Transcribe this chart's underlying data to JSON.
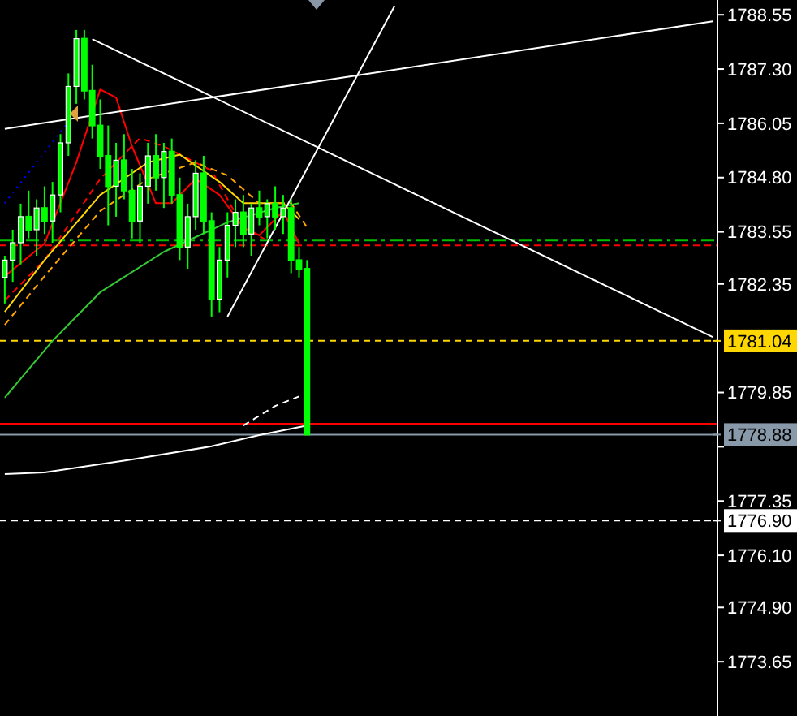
{
  "chart_data": {
    "type": "candlestick",
    "tick_labels": "y",
    "grid": false,
    "categories": [
      null,
      null,
      null,
      null,
      null,
      null,
      null,
      null,
      null,
      null,
      null,
      null,
      null,
      null,
      null,
      null,
      null,
      null,
      null,
      null,
      null,
      null,
      null,
      null,
      null,
      null,
      null,
      null,
      null,
      null,
      null,
      null,
      null,
      null,
      null,
      null,
      null,
      null,
      null,
      null,
      null,
      null,
      null,
      null,
      null,
      null,
      null,
      null,
      null,
      null,
      null,
      null,
      null,
      null,
      null,
      null,
      null,
      null,
      null,
      null,
      null,
      null,
      null,
      null,
      null,
      null,
      null,
      null,
      null,
      null,
      null,
      null,
      null,
      null,
      null,
      null,
      null,
      null,
      null,
      null,
      null,
      null,
      null,
      null,
      null,
      null,
      null,
      null,
      null,
      null
    ],
    "ohlc": [
      [
        1782.5,
        1783.0,
        1781.9,
        1782.9
      ],
      [
        1782.9,
        1783.6,
        1782.4,
        1783.3
      ],
      [
        1783.3,
        1784.2,
        1782.8,
        1783.9
      ],
      [
        1783.9,
        1784.5,
        1783.4,
        1783.6
      ],
      [
        1783.6,
        1784.3,
        1783.0,
        1784.1
      ],
      [
        1784.1,
        1784.6,
        1783.5,
        1783.8
      ],
      [
        1783.8,
        1784.7,
        1783.3,
        1784.4
      ],
      [
        1784.4,
        1785.8,
        1784.0,
        1785.6
      ],
      [
        1785.6,
        1787.2,
        1785.3,
        1786.9
      ],
      [
        1786.9,
        1788.2,
        1786.5,
        1788.0
      ],
      [
        1788.0,
        1788.2,
        1786.6,
        1786.8
      ],
      [
        1786.8,
        1787.4,
        1785.7,
        1786.0
      ],
      [
        1786.0,
        1786.6,
        1785.0,
        1785.3
      ],
      [
        1785.3,
        1786.0,
        1783.7,
        1784.6
      ],
      [
        1784.6,
        1785.6,
        1783.9,
        1785.2
      ],
      [
        1785.2,
        1785.8,
        1784.3,
        1784.5
      ],
      [
        1784.5,
        1785.0,
        1783.4,
        1783.8
      ],
      [
        1783.8,
        1784.9,
        1783.3,
        1784.6
      ],
      [
        1784.6,
        1785.6,
        1784.2,
        1785.3
      ],
      [
        1785.3,
        1785.8,
        1784.5,
        1784.8
      ],
      [
        1784.8,
        1785.6,
        1784.1,
        1785.4
      ],
      [
        1785.4,
        1785.7,
        1784.2,
        1784.4
      ],
      [
        1784.4,
        1784.8,
        1782.9,
        1783.2
      ],
      [
        1783.2,
        1784.2,
        1782.7,
        1783.9
      ],
      [
        1783.9,
        1785.2,
        1783.6,
        1784.9
      ],
      [
        1784.9,
        1785.3,
        1783.5,
        1783.8
      ],
      [
        1783.8,
        1784.0,
        1781.6,
        1782.0
      ],
      [
        1782.0,
        1783.2,
        1781.7,
        1782.9
      ],
      [
        1782.9,
        1784.0,
        1782.5,
        1783.7
      ],
      [
        1783.7,
        1784.3,
        1783.2,
        1784.0
      ],
      [
        1784.0,
        1784.4,
        1783.2,
        1783.5
      ],
      [
        1783.5,
        1784.2,
        1783.0,
        1784.1
      ],
      [
        1784.1,
        1784.5,
        1783.7,
        1783.9
      ],
      [
        1783.9,
        1784.3,
        1783.4,
        1784.2
      ],
      [
        1784.2,
        1784.6,
        1783.6,
        1783.9
      ],
      [
        1783.9,
        1784.4,
        1783.5,
        1784.1
      ],
      [
        1784.1,
        1784.3,
        1782.6,
        1782.9
      ],
      [
        1782.9,
        1783.2,
        1782.5,
        1782.7
      ],
      [
        1782.7,
        1782.9,
        1778.88,
        1778.88
      ],
      null,
      null,
      null,
      null,
      null,
      null,
      null,
      null,
      null,
      null,
      null,
      null,
      null,
      null,
      null,
      null,
      null,
      null,
      null,
      null,
      null,
      null,
      null,
      null,
      null,
      null,
      null,
      null,
      null,
      null,
      null,
      null,
      null,
      null,
      null,
      null,
      null,
      null,
      null,
      null,
      null,
      null,
      null,
      null,
      null,
      null,
      null,
      null,
      null,
      null,
      null
    ],
    "color": "#00ff00",
    "series": [
      {
        "type": "line",
        "color": "#ff0000",
        "line_style": "solid",
        "values": [
          1782.53,
          null,
          null,
          null,
          null,
          1783.28,
          null,
          null,
          null,
          1785.15,
          null,
          null,
          1786.83,
          null,
          1786.64,
          null,
          1785.52,
          null,
          null,
          1784.21,
          null,
          1784.21,
          null,
          null,
          1784.77,
          null,
          null,
          1784.4,
          null,
          null,
          1783.65,
          null,
          1783.47,
          null,
          null,
          1784.03,
          null,
          1783.28,
          null,
          null,
          null,
          null,
          null,
          null,
          null,
          null,
          null,
          null,
          null,
          null,
          null,
          null,
          null,
          null,
          null,
          null,
          null,
          null,
          null,
          null,
          null,
          null,
          null,
          null,
          null,
          null,
          null,
          null,
          null,
          null,
          null,
          null,
          null,
          null,
          null,
          null,
          null,
          null,
          null,
          null,
          null,
          null,
          null,
          null,
          null,
          null,
          null,
          null,
          null,
          null
        ]
      },
      {
        "type": "line",
        "color": "#ff0000",
        "line_style": "dashed",
        "values": [
          1781.97,
          null,
          null,
          null,
          null,
          1782.9,
          null,
          null,
          null,
          null,
          null,
          null,
          1784.77,
          null,
          null,
          null,
          null,
          1785.71,
          null,
          null,
          1785.52,
          null,
          null,
          null,
          null,
          null,
          1784.96,
          null,
          null,
          null,
          1783.65,
          null,
          null,
          1783.35,
          null,
          null,
          null,
          null,
          null,
          null,
          null,
          null,
          null,
          null,
          null,
          null,
          null,
          null,
          null,
          null,
          null,
          null,
          null,
          null,
          null,
          null,
          null,
          null,
          null,
          null,
          null,
          null,
          null,
          null,
          null,
          null,
          null,
          null,
          null,
          null,
          null,
          null,
          null,
          null,
          null,
          null,
          null,
          null,
          null,
          null,
          null,
          null,
          null,
          null,
          null,
          null,
          null,
          null,
          null,
          null
        ]
      },
      {
        "type": "line",
        "color": "#ffd700",
        "line_style": "solid",
        "values": [
          1781.71,
          null,
          null,
          null,
          null,
          1782.9,
          null,
          null,
          null,
          null,
          null,
          null,
          1784.4,
          null,
          null,
          null,
          null,
          null,
          1785.15,
          null,
          null,
          null,
          1785.33,
          null,
          null,
          null,
          null,
          1784.7,
          null,
          null,
          1784.21,
          null,
          null,
          null,
          null,
          1784.21,
          null,
          1783.84,
          null,
          null,
          null,
          null,
          null,
          null,
          null,
          null,
          null,
          null,
          null,
          null,
          null,
          null,
          null,
          null,
          null,
          null,
          null,
          null,
          null,
          null,
          null,
          null,
          null,
          null,
          null,
          null,
          null,
          null,
          null,
          null,
          null,
          null,
          null,
          null,
          null,
          null,
          null,
          null,
          null,
          null,
          null,
          null,
          null,
          null,
          null,
          null,
          null,
          null,
          null,
          null
        ]
      },
      {
        "type": "line",
        "color": "#ffa500",
        "line_style": "dashed",
        "values": [
          1781.41,
          null,
          null,
          null,
          null,
          1782.53,
          null,
          null,
          null,
          null,
          null,
          null,
          1784.03,
          null,
          null,
          null,
          null,
          null,
          1784.77,
          null,
          null,
          null,
          null,
          null,
          1785.15,
          null,
          null,
          null,
          1784.85,
          null,
          null,
          null,
          1784.21,
          null,
          null,
          null,
          1784.21,
          null,
          1783.65,
          null,
          null,
          null,
          null,
          null,
          null,
          null,
          null,
          null,
          null,
          null,
          null,
          null,
          null,
          null,
          null,
          null,
          null,
          null,
          null,
          null,
          null,
          null,
          null,
          null,
          null,
          null,
          null,
          null,
          null,
          null,
          null,
          null,
          null,
          null,
          null,
          null,
          null,
          null,
          null,
          null,
          null,
          null,
          null,
          null,
          null,
          null,
          null,
          null,
          null,
          null
        ]
      },
      {
        "type": "line",
        "color": "#32cd32",
        "line_style": "solid",
        "values": [
          1779.73,
          null,
          null,
          null,
          null,
          null,
          1781.04,
          null,
          null,
          null,
          null,
          null,
          1782.16,
          null,
          null,
          null,
          null,
          null,
          null,
          null,
          1783.09,
          null,
          null,
          null,
          null,
          null,
          null,
          null,
          1783.77,
          null,
          null,
          null,
          null,
          null,
          1784.1,
          null,
          null,
          1784.21,
          null,
          null,
          null,
          null,
          null,
          null,
          null,
          null,
          null,
          null,
          null,
          null,
          null,
          null,
          null,
          null,
          null,
          null,
          null,
          null,
          null,
          null,
          null,
          null,
          null,
          null,
          null,
          null,
          null,
          null,
          null,
          null,
          null,
          null,
          null,
          null,
          null,
          null,
          null,
          null,
          null,
          null,
          null,
          null,
          null,
          null,
          null,
          null,
          null,
          null,
          null,
          null
        ]
      },
      {
        "type": "line",
        "color": "#ffffff",
        "line_style": "solid",
        "values": [
          1777.97,
          null,
          null,
          null,
          null,
          1778.01,
          null,
          null,
          null,
          null,
          null,
          null,
          null,
          null,
          null,
          null,
          1778.31,
          null,
          null,
          null,
          null,
          null,
          null,
          null,
          null,
          null,
          1778.61,
          null,
          null,
          null,
          null,
          null,
          1778.87,
          null,
          null,
          null,
          null,
          null,
          1779.09,
          null,
          null,
          null,
          null,
          null,
          null,
          null,
          null,
          null,
          null,
          null,
          null,
          null,
          null,
          null,
          null,
          null,
          null,
          null,
          null,
          null,
          null,
          null,
          null,
          null,
          null,
          null,
          null,
          null,
          null,
          null,
          null,
          null,
          null,
          null,
          null,
          null,
          null,
          null,
          null,
          null,
          null,
          null,
          null,
          null,
          null,
          null,
          null,
          null,
          null,
          null
        ]
      },
      {
        "type": "line",
        "color": "#ffffff",
        "line_style": "dashed",
        "values": [
          null,
          null,
          null,
          null,
          null,
          null,
          null,
          null,
          null,
          null,
          null,
          null,
          null,
          null,
          null,
          null,
          null,
          null,
          null,
          null,
          null,
          null,
          null,
          null,
          null,
          null,
          null,
          null,
          null,
          null,
          1779.09,
          null,
          null,
          null,
          1779.54,
          null,
          null,
          1779.76,
          null,
          null,
          null,
          null,
          null,
          null,
          null,
          null,
          null,
          null,
          null,
          null,
          null,
          null,
          null,
          null,
          null,
          null,
          null,
          null,
          null,
          null,
          null,
          null,
          null,
          null,
          null,
          null,
          null,
          null,
          null,
          null,
          null,
          null,
          null,
          null,
          null,
          null,
          null,
          null,
          null,
          null,
          null,
          null,
          null,
          null,
          null,
          null,
          null,
          null,
          null,
          null
        ]
      },
      {
        "type": "line",
        "color": "#0000ff",
        "line_style": "dotted",
        "values": [
          1784.21,
          null,
          null,
          null,
          null,
          null,
          null,
          null,
          1786.08,
          null,
          null,
          null,
          null,
          null,
          null,
          null,
          null,
          null,
          null,
          null,
          null,
          null,
          null,
          null,
          null,
          null,
          null,
          null,
          null,
          null,
          null,
          null,
          null,
          null,
          null,
          null,
          null,
          null,
          null,
          null,
          null,
          null,
          null,
          null,
          null,
          null,
          null,
          null,
          null,
          null,
          null,
          null,
          null,
          null,
          null,
          null,
          null,
          null,
          null,
          null,
          null,
          null,
          null,
          null,
          null,
          null,
          null,
          null,
          null,
          null,
          null,
          null,
          null,
          null,
          null,
          null,
          null,
          null,
          null,
          null,
          null,
          null,
          null,
          null,
          null,
          null,
          null,
          null,
          null,
          null
        ]
      },
      {
        "type": "line",
        "color": "#ffffff",
        "line_style": "solid",
        "values": [
          1785.92,
          null,
          null,
          null,
          null,
          null,
          null,
          null,
          null,
          null,
          null,
          null,
          null,
          null,
          null,
          null,
          null,
          null,
          null,
          null,
          null,
          null,
          null,
          null,
          null,
          null,
          null,
          null,
          null,
          null,
          null,
          null,
          null,
          null,
          null,
          null,
          null,
          null,
          null,
          null,
          null,
          null,
          null,
          null,
          null,
          null,
          null,
          null,
          null,
          null,
          null,
          null,
          null,
          null,
          null,
          null,
          null,
          null,
          null,
          null,
          null,
          null,
          null,
          null,
          null,
          null,
          null,
          null,
          null,
          null,
          null,
          null,
          null,
          null,
          null,
          null,
          null,
          null,
          null,
          null,
          null,
          null,
          null,
          null,
          null,
          null,
          null,
          null,
          null,
          1788.4
        ]
      },
      {
        "type": "line",
        "color": "#ffffff",
        "line_style": "solid",
        "values": [
          null,
          null,
          null,
          null,
          null,
          null,
          null,
          null,
          null,
          null,
          null,
          1787.99,
          null,
          null,
          null,
          null,
          null,
          null,
          null,
          null,
          null,
          null,
          null,
          null,
          null,
          null,
          null,
          null,
          null,
          null,
          null,
          null,
          null,
          null,
          null,
          null,
          null,
          null,
          null,
          null,
          null,
          null,
          null,
          null,
          null,
          null,
          null,
          null,
          null,
          null,
          null,
          null,
          null,
          null,
          null,
          null,
          null,
          null,
          null,
          null,
          null,
          null,
          null,
          null,
          null,
          null,
          null,
          null,
          null,
          null,
          null,
          null,
          null,
          null,
          null,
          null,
          null,
          null,
          null,
          null,
          null,
          null,
          null,
          null,
          null,
          null,
          null,
          null,
          null,
          1781.13
        ]
      },
      {
        "type": "line",
        "color": "#ffffff",
        "line_style": "solid",
        "values": [
          null,
          null,
          null,
          null,
          null,
          null,
          null,
          null,
          null,
          null,
          null,
          null,
          null,
          null,
          null,
          null,
          null,
          null,
          null,
          null,
          null,
          null,
          null,
          null,
          null,
          null,
          null,
          null,
          1781.6,
          null,
          null,
          null,
          null,
          null,
          null,
          null,
          null,
          null,
          null,
          null,
          null,
          null,
          null,
          null,
          null,
          null,
          null,
          null,
          null,
          1788.75,
          null,
          null,
          null,
          null,
          null,
          null,
          null,
          null,
          null,
          null,
          null,
          null,
          null,
          null,
          null,
          null,
          null,
          null,
          null,
          null,
          null,
          null,
          null,
          null,
          null,
          null,
          null,
          null,
          null,
          null,
          null,
          null,
          null,
          null,
          null,
          null,
          null,
          null,
          null,
          null
        ]
      }
    ],
    "ylim": [
      1772.4,
      1788.89
    ],
    "yticks": [
      1773.65,
      {
        "value": 1774.9,
        "label": "1774.90"
      },
      {
        "value": 1776.1,
        "label": "1776.10"
      },
      1777.35,
      {
        "value": 1778.6,
        "label": null
      },
      1779.85,
      1782.35,
      1783.55,
      {
        "value": 1784.8,
        "label": "1784.80"
      },
      1786.05,
      {
        "value": 1787.3,
        "label": "1787.30"
      },
      1788.55
    ],
    "ref_lines": [
      {
        "axis": "y",
        "value": 1783.35,
        "color": "#00c000",
        "line_style": "dashdot"
      },
      {
        "axis": "y",
        "value": 1783.24,
        "color": "#ff0000",
        "line_style": "dashed"
      },
      {
        "axis": "y",
        "value": 1781.04,
        "label": "1781.04",
        "color": "#ffd700",
        "line_style": "dashed"
      },
      {
        "axis": "y",
        "value": 1779.13,
        "color": "#ff0000",
        "line_style": "solid"
      },
      {
        "axis": "y",
        "value": 1778.88,
        "label": "1778.88",
        "color": "#8899aa",
        "line_style": "solid"
      },
      {
        "axis": "y",
        "value": 1776.9,
        "label": "1776.90",
        "color": "#ffffff",
        "line_style": "dashed"
      }
    ]
  }
}
